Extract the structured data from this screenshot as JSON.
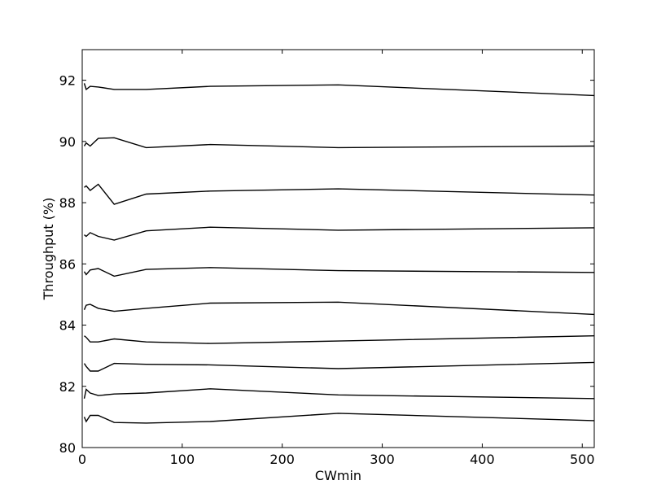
{
  "chart_data": {
    "type": "line",
    "title": "",
    "xlabel": "CWmin",
    "ylabel": "Throughput (%)",
    "xlim": [
      0,
      512
    ],
    "ylim": [
      80,
      93
    ],
    "xticks": [
      0,
      100,
      200,
      300,
      400,
      500
    ],
    "yticks": [
      80,
      82,
      84,
      86,
      88,
      90,
      92
    ],
    "grid": false,
    "legend": "none",
    "line_color": "#000000",
    "x": [
      2,
      4,
      8,
      16,
      32,
      64,
      128,
      256,
      512
    ],
    "series": [
      {
        "values": [
          91.9,
          91.7,
          91.8,
          91.78,
          91.7,
          91.7,
          91.8,
          91.85,
          91.5
        ]
      },
      {
        "values": [
          89.85,
          89.95,
          89.85,
          90.1,
          90.12,
          89.8,
          89.9,
          89.8,
          89.85
        ]
      },
      {
        "values": [
          88.5,
          88.55,
          88.4,
          88.6,
          87.95,
          88.28,
          88.38,
          88.45,
          88.25
        ]
      },
      {
        "values": [
          86.95,
          86.9,
          87.02,
          86.9,
          86.78,
          87.08,
          87.2,
          87.1,
          87.18
        ]
      },
      {
        "values": [
          85.75,
          85.65,
          85.8,
          85.85,
          85.6,
          85.82,
          85.88,
          85.78,
          85.72
        ]
      },
      {
        "values": [
          84.5,
          84.65,
          84.68,
          84.55,
          84.45,
          84.55,
          84.72,
          84.75,
          84.35
        ]
      },
      {
        "values": [
          83.65,
          83.6,
          83.45,
          83.45,
          83.55,
          83.45,
          83.4,
          83.48,
          83.65
        ]
      },
      {
        "values": [
          82.75,
          82.65,
          82.5,
          82.5,
          82.75,
          82.72,
          82.7,
          82.58,
          82.78
        ]
      },
      {
        "values": [
          81.6,
          81.9,
          81.78,
          81.7,
          81.75,
          81.78,
          81.92,
          81.72,
          81.6
        ]
      },
      {
        "values": [
          81.0,
          80.85,
          81.05,
          81.05,
          80.82,
          80.8,
          80.85,
          81.12,
          80.88
        ]
      }
    ]
  }
}
